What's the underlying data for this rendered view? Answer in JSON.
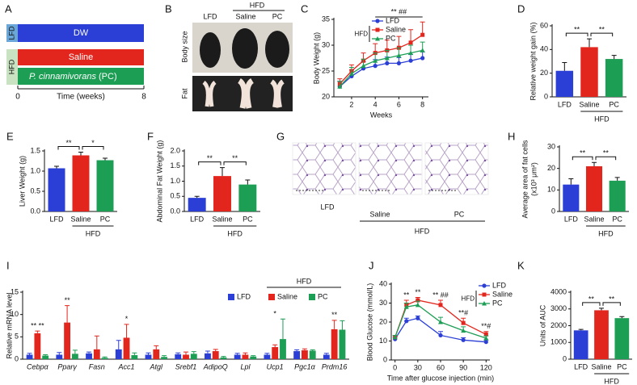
{
  "diagram": {
    "panel": "A",
    "lfd": "LFD",
    "dw": "DW",
    "hfd": "HFD",
    "saline": "Saline",
    "pc_species": "P. cinnamivorans",
    "pc_abbrev": "(PC)",
    "x_start": "0",
    "x_label": "Time (weeks)",
    "x_end": "8"
  },
  "photos": {
    "panel": "B",
    "group": "HFD",
    "columns": [
      "LFD",
      "Saline",
      "PC"
    ],
    "rows": [
      "Body size",
      "Fat"
    ]
  },
  "histology": {
    "panel": "G",
    "group": "HFD",
    "columns": [
      "LFD",
      "Saline",
      "PC"
    ]
  },
  "chart_data": [
    {
      "panel": "C",
      "type": "line",
      "x": [
        1,
        2,
        3,
        4,
        5,
        6,
        7,
        8
      ],
      "xlim": [
        0.5,
        8.5
      ],
      "xticks": [
        2,
        4,
        6,
        8
      ],
      "ylim": [
        20,
        35
      ],
      "yticks": [
        20,
        25,
        30,
        35
      ],
      "xlabel": "Weeks",
      "ylabel": "Body Weight (g)",
      "legend": "upper left",
      "legend_group": "HFD",
      "annotation": "** ##",
      "series": [
        {
          "name": "LFD",
          "color": "#2b3fd6",
          "values": [
            22,
            24,
            25.5,
            26,
            26.5,
            26.5,
            27,
            27.5
          ],
          "errors": [
            1,
            1.2,
            1.3,
            1.2,
            1.2,
            1.1,
            1.2,
            1.2
          ]
        },
        {
          "name": "Saline",
          "color": "#e3261d",
          "values": [
            22.5,
            25,
            27,
            28.5,
            29,
            29.5,
            30.5,
            32
          ],
          "errors": [
            1,
            1.2,
            1.5,
            1.8,
            2,
            2.2,
            2.5,
            2.5
          ]
        },
        {
          "name": "PC",
          "color": "#1d9e55",
          "values": [
            22,
            24.5,
            26,
            27,
            27.5,
            28,
            28.5,
            29
          ],
          "errors": [
            1,
            1.2,
            1.3,
            1.5,
            1.5,
            1.5,
            1.5,
            1.6
          ]
        }
      ]
    },
    {
      "panel": "D",
      "type": "bar",
      "categories": [
        "LFD",
        "Saline",
        "PC"
      ],
      "values": [
        22,
        42,
        32
      ],
      "errors": [
        7,
        7,
        3
      ],
      "colors": [
        "#2b3fd6",
        "#e3261d",
        "#1d9e55"
      ],
      "ylim": [
        0,
        60
      ],
      "yticks": [
        0,
        20,
        40,
        60
      ],
      "ylabel": "Relative weight gain (%)",
      "significance": [
        "**",
        "**"
      ],
      "group_label": "HFD"
    },
    {
      "panel": "E",
      "type": "bar",
      "categories": [
        "LFD",
        "Saline",
        "PC"
      ],
      "values": [
        1.07,
        1.39,
        1.27
      ],
      "errors": [
        0.05,
        0.08,
        0.05
      ],
      "colors": [
        "#2b3fd6",
        "#e3261d",
        "#1d9e55"
      ],
      "ylim": [
        0,
        1.5
      ],
      "yticks": [
        {
          "value": 0,
          "label": "0.0"
        },
        0.5,
        {
          "value": 1,
          "label": "1.0"
        },
        1.5
      ],
      "ylabel": "Liver Weight (g)",
      "significance": [
        "**",
        "*"
      ],
      "group_label": "HFD"
    },
    {
      "panel": "F",
      "type": "bar",
      "categories": [
        "LFD",
        "Saline",
        "PC"
      ],
      "values": [
        0.45,
        1.17,
        0.89
      ],
      "errors": [
        0.05,
        0.28,
        0.15
      ],
      "colors": [
        "#2b3fd6",
        "#e3261d",
        "#1d9e55"
      ],
      "ylim": [
        0,
        2
      ],
      "yticks": [
        {
          "value": 0,
          "label": "0.0"
        },
        0.5,
        {
          "value": 1,
          "label": "1.0"
        },
        1.5,
        {
          "value": 2,
          "label": "2.0"
        }
      ],
      "ylabel": "Abdominal Fat Weight (g)",
      "significance": [
        "**",
        "**"
      ],
      "group_label": "HFD"
    },
    {
      "panel": "H",
      "type": "bar",
      "categories": [
        "LFD",
        "Saline",
        "PC"
      ],
      "values": [
        12.5,
        21,
        14.3
      ],
      "errors": [
        2.7,
        1.8,
        1.5
      ],
      "colors": [
        "#2b3fd6",
        "#e3261d",
        "#1d9e55"
      ],
      "ylim": [
        0,
        30
      ],
      "yticks": [
        0,
        10,
        20,
        30
      ],
      "ylabel": [
        "Average area of fat cells",
        "(x10³ μm²)"
      ],
      "significance": [
        "**",
        "**"
      ],
      "group_label": "HFD"
    },
    {
      "panel": "I",
      "type": "bar",
      "categories": [
        "Cebpα",
        "Pparγ",
        "Fasn",
        "Acc1",
        "Atgl",
        "Srebf1",
        "AdipoQ",
        "Lpl",
        "Ucp1",
        "Pgc1α",
        "Prdm16"
      ],
      "ylim": [
        0,
        15
      ],
      "yticks": [
        0,
        5,
        10,
        15
      ],
      "ylabel": "Relative mRNA level",
      "legend": "upper right",
      "legend_group": "HFD",
      "significance": [
        "** **",
        "**",
        null,
        "*",
        null,
        null,
        null,
        null,
        "*",
        null,
        "**"
      ],
      "series": [
        {
          "name": "LFD",
          "color": "#2b3fd6",
          "values": [
            1,
            1,
            1.3,
            2.2,
            1,
            1.1,
            1.3,
            1,
            1,
            1.8,
            1
          ],
          "errors": [
            0.3,
            0.5,
            0.3,
            2,
            0.4,
            0.3,
            0.5,
            0.3,
            0.3,
            0.3,
            0.3
          ]
        },
        {
          "name": "Saline",
          "color": "#e3261d",
          "values": [
            5.8,
            8.2,
            2.2,
            4.8,
            2.2,
            1,
            1.8,
            1,
            2.7,
            2,
            6.7
          ],
          "errors": [
            0.5,
            3.8,
            3,
            3,
            0.8,
            0.6,
            0.4,
            0.4,
            0.5,
            0.3,
            2
          ]
        },
        {
          "name": "PC",
          "color": "#1d9e55",
          "values": [
            0.8,
            1.2,
            0.3,
            0.9,
            0.5,
            1.2,
            0.4,
            0.6,
            4.5,
            1.9,
            6.6
          ],
          "errors": [
            0.2,
            0.8,
            0.2,
            0.5,
            0.3,
            0.5,
            0.2,
            0.2,
            4.5,
            0.2,
            2
          ]
        }
      ]
    },
    {
      "panel": "J",
      "type": "line",
      "x": [
        0,
        15,
        30,
        60,
        90,
        120
      ],
      "xlim": [
        -5,
        125
      ],
      "xticks": [
        0,
        30,
        60,
        90,
        120
      ],
      "ylim": [
        0,
        40
      ],
      "yticks": [
        0,
        10,
        20,
        30,
        40
      ],
      "xlabel": "Time after glucose injection (min)",
      "ylabel": "Blood Glucose (mmol/L)",
      "legend": "upper right",
      "legend_group": "HFD",
      "annotations": [
        null,
        "**",
        "**",
        "** ##",
        "**#",
        "**#"
      ],
      "series": [
        {
          "name": "LFD",
          "color": "#2b3fd6",
          "values": [
            11,
            20.5,
            22,
            13,
            10.5,
            9.5
          ],
          "errors": [
            1,
            1.5,
            1.2,
            2,
            1.2,
            1
          ]
        },
        {
          "name": "Saline",
          "color": "#e3261d",
          "values": [
            12,
            29,
            31.5,
            29,
            19.5,
            13.5
          ],
          "errors": [
            1,
            2.5,
            1.5,
            2.5,
            2.5,
            1.5
          ]
        },
        {
          "name": "PC",
          "color": "#1d9e55",
          "values": [
            12,
            28,
            29,
            20,
            15.5,
            11.5
          ],
          "errors": [
            1,
            2,
            2,
            2.5,
            2,
            1.2
          ]
        }
      ]
    },
    {
      "panel": "K",
      "type": "bar",
      "categories": [
        "LFD",
        "Saline",
        "PC"
      ],
      "values": [
        1720,
        2920,
        2450
      ],
      "errors": [
        60,
        120,
        90
      ],
      "colors": [
        "#2b3fd6",
        "#e3261d",
        "#1d9e55"
      ],
      "ylim": [
        0,
        4000
      ],
      "yticks": [
        0,
        1000,
        2000,
        3000,
        4000
      ],
      "ylabel": "Units of AUC",
      "significance": [
        "**",
        "**"
      ],
      "group_label": "HFD"
    }
  ]
}
